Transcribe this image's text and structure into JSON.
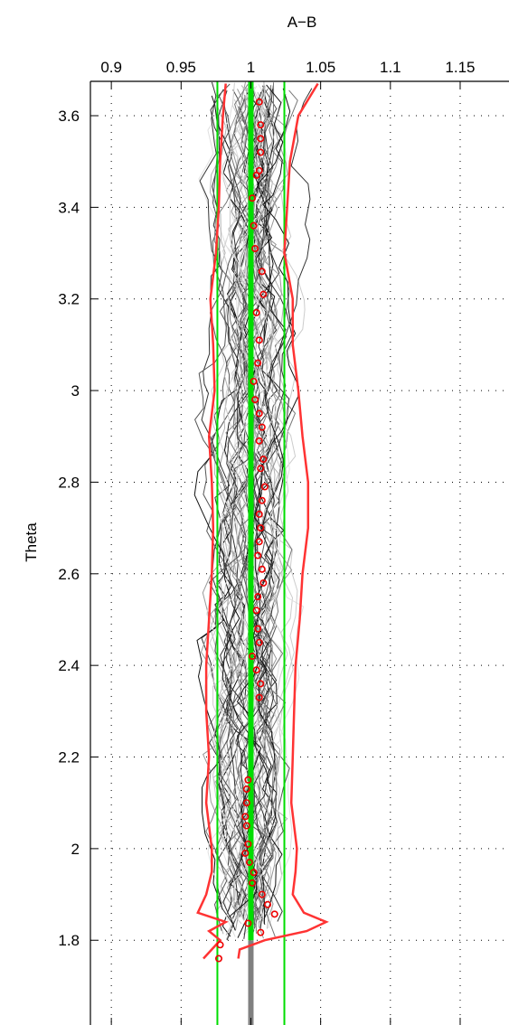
{
  "chart_data": {
    "type": "line",
    "title": "A−B",
    "xlabel": "",
    "ylabel": "Theta",
    "xlim": [
      0.885,
      1.185
    ],
    "ylim": [
      1.615,
      3.675
    ],
    "x_axis_position": "top",
    "grid": true,
    "x_ticks": [
      0.9,
      0.95,
      1,
      1.05,
      1.1,
      1.15
    ],
    "x_tick_labels": [
      "0.9",
      "0.95",
      "1",
      "1.05",
      "1.1",
      "1.15"
    ],
    "y_ticks": [
      1.8,
      2.0,
      2.2,
      2.4,
      2.6,
      2.8,
      3.0,
      3.2,
      3.4,
      3.6
    ],
    "y_tick_labels": [
      "1.8",
      "2",
      "2.2",
      "2.4",
      "2.6",
      "2.8",
      "3",
      "3.2",
      "3.4",
      "3.6"
    ],
    "reference_lines": {
      "center_x": 1.0,
      "inner_bounds_x": [
        0.976,
        1.024
      ],
      "center_color": "#00dd00",
      "bound_color": "#00dd00",
      "gray_stem_range_y": [
        1.615,
        1.8
      ],
      "gray_stem_color": "#808080"
    },
    "envelope": {
      "color": "#ff3333",
      "y": [
        1.76,
        1.78,
        1.8,
        1.82,
        1.84,
        1.86,
        1.9,
        1.95,
        2.0,
        2.1,
        2.2,
        2.3,
        2.4,
        2.5,
        2.6,
        2.7,
        2.8,
        2.9,
        3.0,
        3.1,
        3.2,
        3.3,
        3.4,
        3.5,
        3.6,
        3.67
      ],
      "lower": [
        0.966,
        0.972,
        0.978,
        0.97,
        0.982,
        0.962,
        0.968,
        0.972,
        0.972,
        0.968,
        0.97,
        0.968,
        0.968,
        0.97,
        0.972,
        0.973,
        0.972,
        0.97,
        0.974,
        0.973,
        0.971,
        0.975,
        0.977,
        0.978,
        0.98,
        0.982
      ],
      "upper": [
        0.991,
        0.992,
        1.01,
        1.04,
        1.054,
        1.038,
        1.03,
        1.032,
        1.033,
        1.029,
        1.03,
        1.031,
        1.032,
        1.035,
        1.037,
        1.041,
        1.041,
        1.037,
        1.034,
        1.03,
        1.03,
        1.024,
        1.026,
        1.028,
        1.034,
        1.048
      ]
    },
    "mean_points": {
      "color": "#ee0000",
      "x": [
        0.977,
        0.978,
        1.007,
        0.998,
        1.017,
        1.012,
        1.008,
        1.001,
        1.002,
        0.999,
        0.996,
        0.998,
        0.997,
        0.996,
        0.997,
        0.997,
        0.998,
        1.006,
        1.007,
        1.004,
        1.001,
        1.006,
        1.005,
        1.004,
        1.005,
        1.009,
        1.008,
        1.005,
        1.006,
        1.007,
        1.006,
        1.008,
        1.01,
        1.007,
        1.009,
        1.006,
        1.008,
        1.006,
        1.003,
        1.002,
        1.005,
        1.006,
        1.004,
        1.009,
        1.008,
        1.003,
        1.002,
        1.001,
        1.004,
        1.007,
        1.007,
        1.006,
        1.006,
        1.007
      ],
      "y": [
        1.76,
        1.79,
        1.817,
        1.837,
        1.857,
        1.878,
        1.9,
        1.925,
        1.948,
        1.97,
        1.99,
        2.01,
        2.05,
        2.07,
        2.1,
        2.13,
        2.15,
        2.33,
        2.36,
        2.39,
        2.42,
        2.45,
        2.48,
        2.52,
        2.55,
        2.58,
        2.61,
        2.64,
        2.67,
        2.7,
        2.73,
        2.76,
        2.79,
        2.83,
        2.85,
        2.89,
        2.92,
        2.95,
        2.98,
        3.02,
        3.06,
        3.11,
        3.17,
        3.21,
        3.26,
        3.31,
        3.36,
        3.42,
        3.47,
        3.52,
        3.58,
        3.63,
        3.48,
        3.55
      ]
    },
    "sample_traces": {
      "count": 60,
      "colors": [
        "#111111",
        "#333333",
        "#555555",
        "#777777",
        "#999999",
        "#b3b3b3",
        "#cccccc",
        "#e0e0e0"
      ],
      "note_excluded": true
    }
  }
}
